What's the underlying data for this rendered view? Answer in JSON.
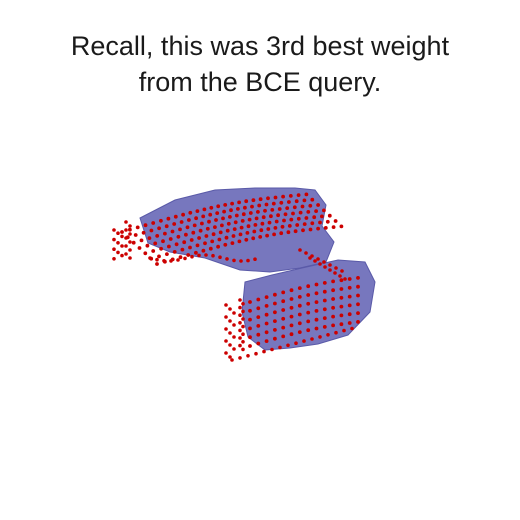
{
  "caption": {
    "line1": "Recall, this was 3rd best weight",
    "line2": "from the BCE query."
  },
  "colors": {
    "mesh_fill": "#6b6bb8",
    "mesh_edge": "#5a5aa8",
    "point": "#cc0000",
    "text": "#1a1a1a",
    "background": "#ffffff"
  }
}
